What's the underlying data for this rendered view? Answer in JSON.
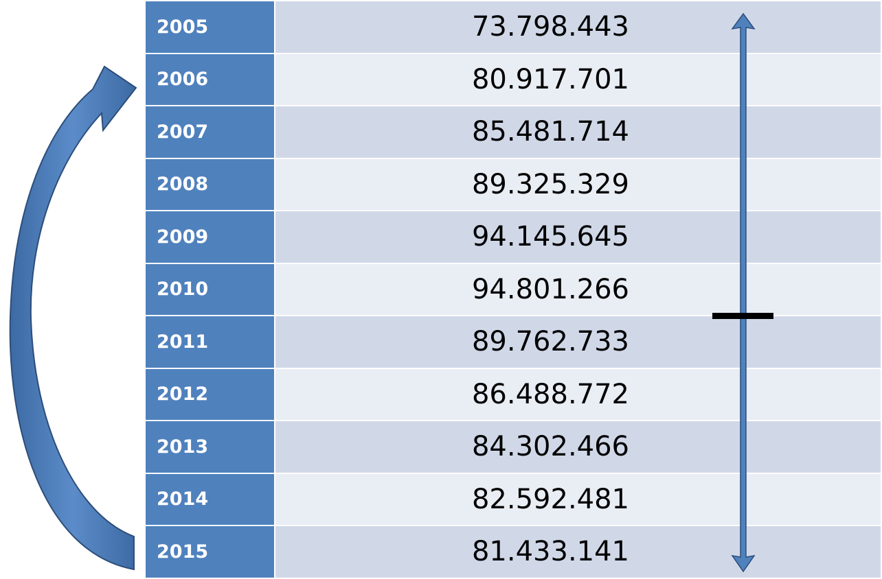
{
  "table": {
    "rows": [
      [
        "2005",
        "73.798.443"
      ],
      [
        "2006",
        "80.917.701"
      ],
      [
        "2007",
        "85.481.714"
      ],
      [
        "2008",
        "89.325.329"
      ],
      [
        "2009",
        "94.145.645"
      ],
      [
        "2010",
        "94.801.266"
      ],
      [
        "2011",
        "89.762.733"
      ],
      [
        "2012",
        "86.488.772"
      ],
      [
        "2013",
        "84.302.466"
      ],
      [
        "2014",
        "82.592.481"
      ],
      [
        "2015",
        "81.433.141"
      ]
    ]
  }
}
